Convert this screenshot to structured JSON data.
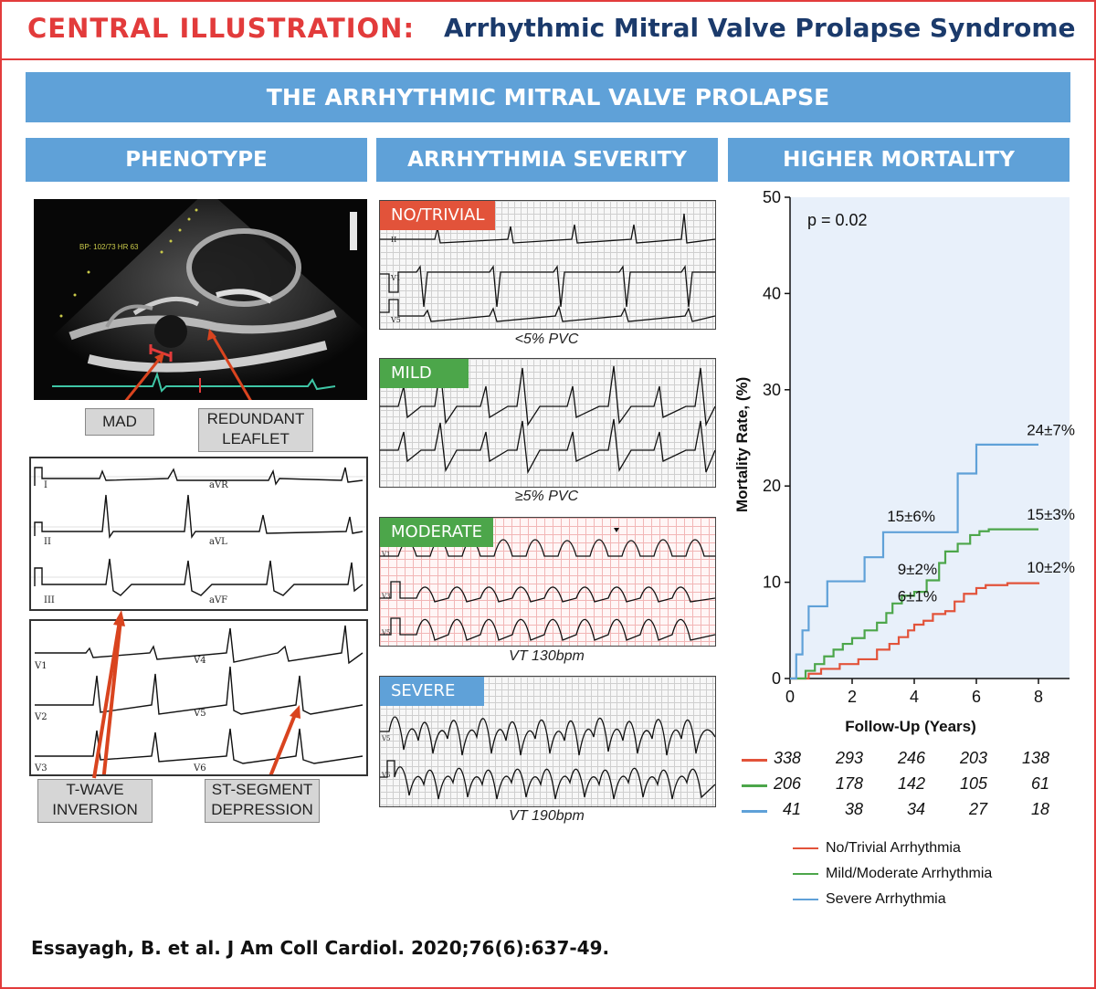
{
  "header": {
    "label": "CENTRAL ILLUSTRATION:",
    "title": "Arrhythmic Mitral Valve Prolapse Syndrome"
  },
  "main_banner": "THE ARRHYTHMIC MITRAL VALVE PROLAPSE",
  "columns": {
    "phenotype": "PHENOTYPE",
    "severity": "ARRHYTHMIA SEVERITY",
    "mortality": "HIGHER MORTALITY"
  },
  "phenotype": {
    "callouts": [
      "MAD",
      "REDUNDANT LEAFLET",
      "T-WAVE INVERSION",
      "ST-SEGMENT DEPRESSION"
    ],
    "echo_text": "BP: 102/73 HR 63",
    "limb_leads": [
      "I",
      "aVR",
      "II",
      "aVL",
      "III",
      "aVF"
    ],
    "chest_leads": [
      "V1",
      "V4",
      "V2",
      "V5",
      "V3",
      "V6"
    ]
  },
  "severity": [
    {
      "label": "NO/TRIVIAL",
      "caption": "<5% PVC",
      "color": "#e2533a",
      "leads": [
        "II",
        "V1",
        "V5"
      ]
    },
    {
      "label": "MILD",
      "caption": "≥5% PVC",
      "color": "#4ca64a",
      "leads": []
    },
    {
      "label": "MODERATE",
      "caption": "VT 130bpm",
      "color": "#4ca64a",
      "leads": [
        "V1",
        "V3",
        "V5"
      ]
    },
    {
      "label": "SEVERE",
      "caption": "VT 190bpm",
      "color": "#5fa1d8",
      "leads": [
        "V5",
        "V6"
      ]
    }
  ],
  "chart_data": {
    "type": "line",
    "title": "HIGHER MORTALITY",
    "xlabel": "Follow-Up (Years)",
    "ylabel": "Mortality Rate, (%)",
    "xlim": [
      0,
      9
    ],
    "ylim": [
      0,
      50
    ],
    "xticks": [
      0,
      2,
      4,
      6,
      8
    ],
    "yticks": [
      0,
      10,
      20,
      30,
      40,
      50
    ],
    "grid": false,
    "legend": "bottom",
    "annotation": "p = 0.02",
    "series": [
      {
        "name": "No/Trivial Arrhythmia",
        "color": "#e2533a",
        "x": [
          0,
          0.6,
          1.0,
          1.6,
          2.2,
          2.8,
          3.2,
          3.5,
          3.8,
          4.0,
          4.3,
          4.6,
          5.0,
          5.3,
          5.6,
          6.0,
          6.3,
          7.0,
          8.0
        ],
        "y": [
          0,
          0.5,
          1.0,
          1.5,
          2.0,
          3.0,
          3.6,
          4.3,
          5.0,
          5.6,
          6.0,
          6.7,
          7.0,
          8.0,
          8.8,
          9.4,
          9.7,
          9.9,
          10.0
        ],
        "end_label": "10±2%",
        "mid_label": "6±1%"
      },
      {
        "name": "Mild/Moderate Arrhythmia",
        "color": "#4ca64a",
        "x": [
          0,
          0.5,
          0.8,
          1.1,
          1.4,
          1.7,
          2.0,
          2.4,
          2.8,
          3.1,
          3.3,
          3.6,
          4.0,
          4.4,
          4.8,
          5.0,
          5.4,
          5.8,
          6.1,
          6.4,
          8.0
        ],
        "y": [
          0,
          0.8,
          1.5,
          2.3,
          3.0,
          3.6,
          4.2,
          5.0,
          5.8,
          6.8,
          7.8,
          8.6,
          9.0,
          10.2,
          12.0,
          13.2,
          14.0,
          14.9,
          15.3,
          15.5,
          15.5
        ],
        "end_label": "15±3%",
        "mid_label": "9±2%"
      },
      {
        "name": "Severe Arrhythmia",
        "color": "#5fa1d8",
        "x": [
          0,
          0.2,
          0.4,
          0.6,
          1.2,
          2.4,
          3.0,
          5.4,
          6.0,
          8.0
        ],
        "y": [
          0,
          2.5,
          5.0,
          7.5,
          10.1,
          12.6,
          15.2,
          21.3,
          24.3,
          24.3
        ],
        "end_label": "24±7%",
        "mid_label": "15±6%"
      }
    ],
    "risk_table": [
      {
        "color": "#e2533a",
        "values": [
          "338",
          "293",
          "246",
          "203",
          "138"
        ]
      },
      {
        "color": "#4ca64a",
        "values": [
          "206",
          "178",
          "142",
          "105",
          "61"
        ]
      },
      {
        "color": "#5fa1d8",
        "values": [
          "41",
          "38",
          "34",
          "27",
          "18"
        ]
      }
    ]
  },
  "citation": "Essayagh, B. et al. J Am Coll Cardiol. 2020;76(6):637-49."
}
